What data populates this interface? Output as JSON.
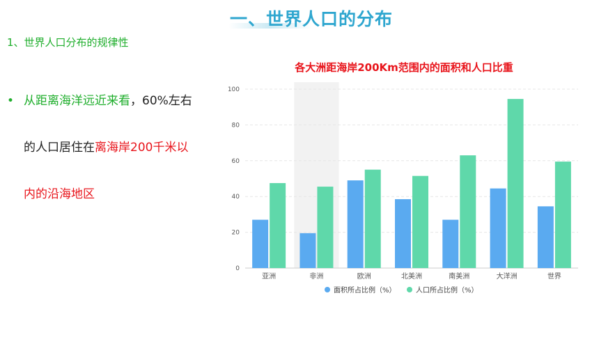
{
  "slide": {
    "title": "一、世界人口的分布",
    "section_heading": "1、世界人口分布的规律性",
    "bullet": {
      "part1_green": "从距离海洋远近来看",
      "part2": "，60%左右",
      "part3": "的人口居住在",
      "part4_red": "离海岸200千米以",
      "part5_red": "内的沿海地区"
    }
  },
  "colors": {
    "title": "#2ea6cf",
    "green_text": "#1fae2c",
    "red_text": "#e8141b",
    "series_area": "#5aaaf0",
    "series_population": "#5fd8aa",
    "highlight_band": "#f2f2f2"
  },
  "chart_data": {
    "type": "bar",
    "title": "各大洲距海岸200Km范围内的面积和人口比重",
    "categories": [
      "亚洲",
      "非洲",
      "欧洲",
      "北美洲",
      "南美洲",
      "大洋洲",
      "世界"
    ],
    "series": [
      {
        "name": "面积所占比例（%）",
        "values": [
          27,
          19.5,
          49,
          38.5,
          27,
          44.5,
          34.5
        ]
      },
      {
        "name": "人口所占比例（%）",
        "values": [
          47.5,
          45.5,
          55,
          51.5,
          63,
          94.5,
          59.5
        ]
      }
    ],
    "ylim": [
      0,
      100
    ],
    "yticks": [
      0,
      20,
      40,
      60,
      80,
      100
    ],
    "grid": true,
    "legend": "bottom",
    "highlighted_category": "非洲"
  }
}
